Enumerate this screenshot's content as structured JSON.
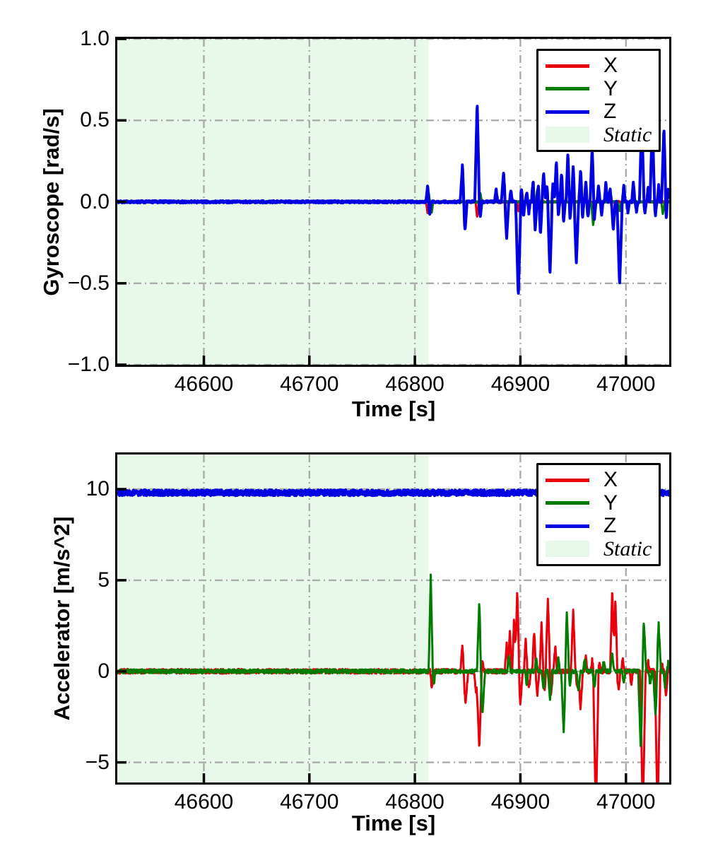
{
  "colors": {
    "x_series": "#e8000d",
    "y_series": "#007c00",
    "z_series": "#0000e1",
    "static_fill": "#e8f9e9",
    "grid": "#ababab",
    "axis": "#000000"
  },
  "chart_data": [
    {
      "type": "line",
      "title": "",
      "xlabel": "Time [s]",
      "ylabel": "Gyroscope [rad/s]",
      "xlim": [
        46518,
        47041
      ],
      "ylim": [
        -1.0,
        1.0
      ],
      "xticks": [
        46600,
        46700,
        46800,
        46900,
        47000
      ],
      "xtick_labels": [
        "46600",
        "46700",
        "46800",
        "46900",
        "47000"
      ],
      "yticks": [
        1.0,
        0.5,
        0.0,
        -0.5,
        -1.0
      ],
      "ytick_labels": [
        "1.0",
        "0.5",
        "0.0",
        "−0.5",
        "−1.0"
      ],
      "grid": "dash-dot",
      "legend_position": "upper right",
      "static_region": {
        "label": "Static",
        "start": 46518,
        "end": 46813,
        "fill": "#e8f9e9"
      },
      "series": [
        {
          "name": "X",
          "color": "#e8000d",
          "baseline": 0,
          "noise": 0.005,
          "spikes": [
            [
              46812,
              -0.07,
              1.5
            ],
            [
              46859,
              -0.1,
              1.5
            ],
            [
              46898,
              -0.06,
              1.5
            ]
          ]
        },
        {
          "name": "Y",
          "color": "#007c00",
          "baseline": 0,
          "noise": 0.005,
          "spikes": [
            [
              46813,
              0.06,
              1.3
            ],
            [
              46816,
              -0.07,
              1.3
            ],
            [
              46862,
              0.06,
              1.5
            ],
            [
              46916,
              0.08,
              1.5
            ],
            [
              46969,
              -0.15,
              2
            ],
            [
              46994,
              -0.06,
              1.5
            ],
            [
              47035,
              -0.08,
              1.5
            ]
          ]
        },
        {
          "name": "Z",
          "color": "#0000e1",
          "baseline": 0,
          "noise": 0.007,
          "spikes": [
            [
              46812,
              0.1,
              1.5
            ],
            [
              46814,
              -0.08,
              1.5
            ],
            [
              46845,
              0.22,
              2
            ],
            [
              46847.5,
              -0.18,
              2
            ],
            [
              46859,
              0.61,
              2.2
            ],
            [
              46862,
              -0.1,
              1.5
            ],
            [
              46877,
              0.08,
              1.5
            ],
            [
              46884,
              0.18,
              2
            ],
            [
              46887,
              -0.22,
              2
            ],
            [
              46891,
              0.07,
              1.5
            ],
            [
              46898,
              -0.59,
              2.5
            ],
            [
              46901,
              0.08,
              1.3
            ],
            [
              46903,
              -0.09,
              1.3
            ],
            [
              46906,
              0.06,
              1.3
            ],
            [
              46908,
              -0.07,
              1.3
            ],
            [
              46912,
              0.13,
              1.6
            ],
            [
              46914,
              -0.17,
              1.8
            ],
            [
              46917,
              0.1,
              1.4
            ],
            [
              46919,
              -0.2,
              1.8
            ],
            [
              46922,
              0.18,
              1.8
            ],
            [
              46925,
              0.1,
              1.5
            ],
            [
              46928,
              -0.45,
              2.2
            ],
            [
              46931,
              0.12,
              1.5
            ],
            [
              46934,
              0.25,
              1.8
            ],
            [
              46936,
              -0.09,
              1.3
            ],
            [
              46939,
              0.18,
              1.6
            ],
            [
              46941,
              -0.12,
              1.5
            ],
            [
              46945,
              0.3,
              1.8
            ],
            [
              46947,
              -0.1,
              1.5
            ],
            [
              46950,
              0.22,
              1.6
            ],
            [
              46953,
              -0.38,
              2.2
            ],
            [
              46957,
              0.2,
              1.6
            ],
            [
              46959,
              -0.09,
              1.3
            ],
            [
              46962,
              0.12,
              1.5
            ],
            [
              46964,
              -0.1,
              1.5
            ],
            [
              46968,
              0.33,
              2
            ],
            [
              46970,
              -0.12,
              1.5
            ],
            [
              46974,
              0.1,
              1.5
            ],
            [
              46977,
              -0.08,
              1.3
            ],
            [
              46981,
              0.12,
              1.5
            ],
            [
              46985,
              0.08,
              1.3
            ],
            [
              46988,
              -0.18,
              1.8
            ],
            [
              46994,
              -0.52,
              2.5
            ],
            [
              46998,
              0.1,
              1.4
            ],
            [
              47002,
              -0.07,
              1.3
            ],
            [
              47007,
              0.12,
              1.5
            ],
            [
              47010,
              -0.06,
              1.3
            ],
            [
              47015,
              0.52,
              2.2
            ],
            [
              47018,
              -0.07,
              1.3
            ],
            [
              47021,
              0.09,
              1.3
            ],
            [
              47025,
              0.5,
              2.2
            ],
            [
              47028,
              -0.08,
              1.3
            ],
            [
              47031,
              0.1,
              1.3
            ],
            [
              47036,
              0.46,
              2.2
            ],
            [
              47038,
              -0.12,
              1.4
            ],
            [
              47040,
              0.08,
              1.2
            ]
          ]
        }
      ]
    },
    {
      "type": "line",
      "title": "",
      "xlabel": "Time [s]",
      "ylabel": "Accelerator [m/s^2]",
      "xlim": [
        46518,
        47041
      ],
      "ylim": [
        -6.1,
        11.9
      ],
      "xticks": [
        46600,
        46700,
        46800,
        46900,
        47000
      ],
      "xtick_labels": [
        "46600",
        "46700",
        "46800",
        "46900",
        "47000"
      ],
      "yticks": [
        10,
        5,
        0,
        -5
      ],
      "ytick_labels": [
        "10",
        "5",
        "0",
        "−5"
      ],
      "grid": "dash-dot",
      "legend_position": "upper right",
      "static_region": {
        "label": "Static",
        "start": 46518,
        "end": 46813,
        "fill": "#e8f9e9"
      },
      "series": [
        {
          "name": "X",
          "color": "#e8000d",
          "baseline": 0,
          "noise": 0.13,
          "spikes": [
            [
              46816,
              -0.9,
              1.5
            ],
            [
              46845,
              1.4,
              2
            ],
            [
              46848,
              -1.7,
              2.5
            ],
            [
              46858,
              -1.2,
              2
            ],
            [
              46861,
              -4.35,
              2.5
            ],
            [
              46864,
              0.6,
              1.5
            ],
            [
              46887,
              1.6,
              1.8
            ],
            [
              46890,
              2.3,
              1.8
            ],
            [
              46894,
              2.9,
              1.8
            ],
            [
              46897,
              4.45,
              2.2
            ],
            [
              46900,
              -1.8,
              2.2
            ],
            [
              46905,
              1.7,
              1.8
            ],
            [
              46908,
              -1.0,
              1.8
            ],
            [
              46913,
              2.3,
              1.8
            ],
            [
              46916,
              -1.3,
              1.8
            ],
            [
              46920,
              2.6,
              1.8
            ],
            [
              46923,
              -1.0,
              1.6
            ],
            [
              46926,
              4.0,
              2.2
            ],
            [
              46929,
              -1.4,
              1.8
            ],
            [
              46933,
              1.5,
              1.6
            ],
            [
              46950,
              3.4,
              2.2
            ],
            [
              46954,
              -1.0,
              1.8
            ],
            [
              46957,
              -2.1,
              2.2
            ],
            [
              46962,
              0.8,
              1.5
            ],
            [
              46968,
              0.6,
              1.5
            ],
            [
              46971.5,
              -8.0,
              2.6
            ],
            [
              46975,
              0.5,
              1.5
            ],
            [
              46987,
              4.6,
              2
            ],
            [
              46990,
              3.9,
              2
            ],
            [
              46993,
              -1.1,
              1.8
            ],
            [
              46997,
              0.7,
              1.5
            ],
            [
              47005,
              -0.8,
              1.5
            ],
            [
              47016,
              -8.0,
              2.6
            ],
            [
              47021,
              0.6,
              1.5
            ],
            [
              47030,
              -8.0,
              2.6
            ],
            [
              47034,
              0.5,
              1.5
            ],
            [
              47038,
              -1.4,
              1.8
            ]
          ]
        },
        {
          "name": "Y",
          "color": "#007c00",
          "baseline": 0,
          "noise": 0.11,
          "spikes": [
            [
              46815,
              5.25,
              2
            ],
            [
              46818,
              -0.7,
              1.6
            ],
            [
              46861,
              3.85,
              2.2
            ],
            [
              46864,
              -2.35,
              2.5
            ],
            [
              46889,
              0.9,
              1.5
            ],
            [
              46906,
              -0.8,
              1.5
            ],
            [
              46915,
              0.7,
              1.5
            ],
            [
              46922,
              -1.0,
              1.8
            ],
            [
              46928,
              -1.6,
              2
            ],
            [
              46936,
              0.8,
              1.5
            ],
            [
              46941,
              -3.3,
              2.4
            ],
            [
              46944,
              3.2,
              2.2
            ],
            [
              46947,
              -0.9,
              1.5
            ],
            [
              46955,
              -1.1,
              1.8
            ],
            [
              46961,
              0.7,
              1.5
            ],
            [
              46970,
              -1.0,
              1.8
            ],
            [
              46979,
              0.6,
              1.5
            ],
            [
              46987,
              1.0,
              1.8
            ],
            [
              46998,
              -0.7,
              1.5
            ],
            [
              47014,
              -4.2,
              2.4
            ],
            [
              47017,
              2.75,
              2.2
            ],
            [
              47023,
              -0.8,
              1.5
            ],
            [
              47028,
              -2.45,
              2.2
            ],
            [
              47031,
              2.6,
              2.2
            ],
            [
              47037,
              -0.8,
              1.5
            ],
            [
              47040,
              0.5,
              1.2
            ]
          ]
        },
        {
          "name": "Z",
          "color": "#0000e1",
          "baseline": 9.8,
          "noise": 0.15,
          "spikes": []
        }
      ]
    }
  ]
}
